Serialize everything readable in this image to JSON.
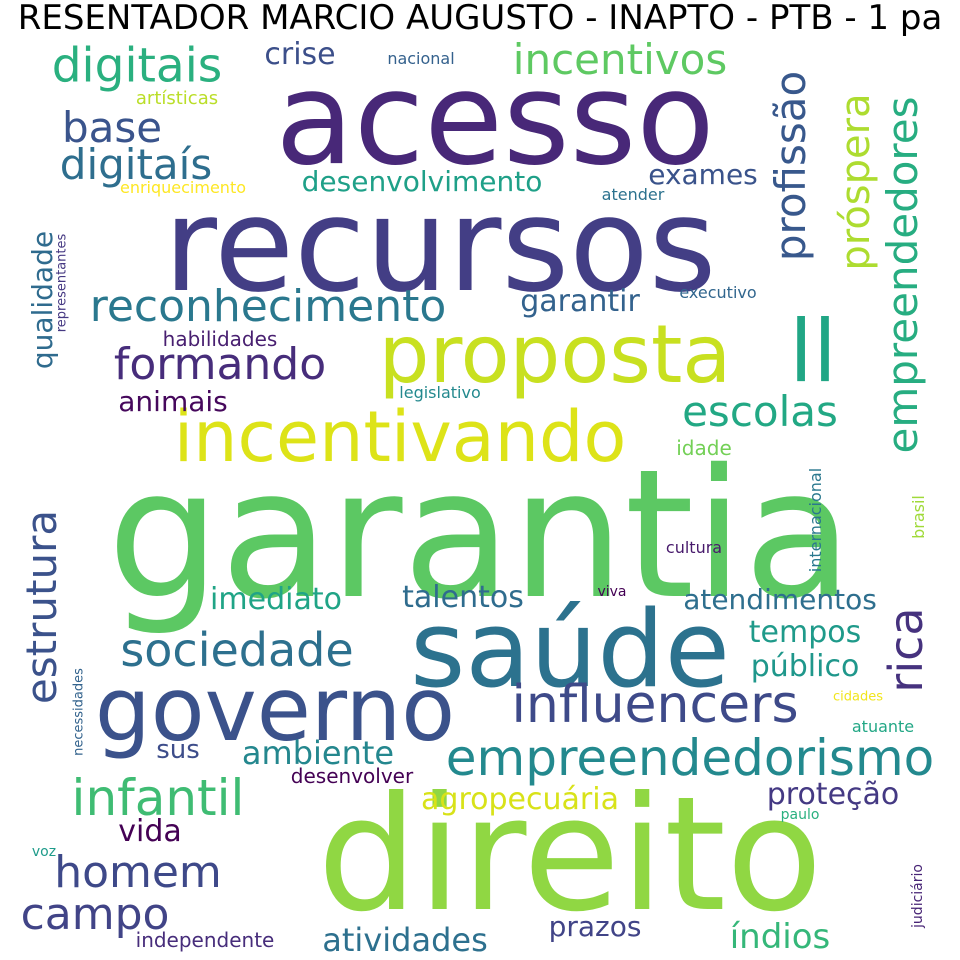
{
  "title": "RESENTADOR MARCIO AUGUSTO - INAPTO - PTB - 1 pa",
  "words": [
    {
      "text": "garantia",
      "color": "#5cc863"
    },
    {
      "text": "direito",
      "color": "#90d743"
    },
    {
      "text": "recursos",
      "color": "#433e85"
    },
    {
      "text": "acesso",
      "color": "#482878"
    },
    {
      "text": "saúde",
      "color": "#2c728e"
    },
    {
      "text": "governo",
      "color": "#3b528b"
    },
    {
      "text": "proposta",
      "color": "#c8e020"
    },
    {
      "text": "incentivando",
      "color": "#dde318"
    },
    {
      "text": "ll",
      "color": "#21a685"
    },
    {
      "text": "empreendedorismo",
      "color": "#23898e"
    },
    {
      "text": "influencers",
      "color": "#3e4a89"
    },
    {
      "text": "reconhecimento",
      "color": "#2a788e"
    },
    {
      "text": "infantil",
      "color": "#3fbc73"
    },
    {
      "text": "digitais",
      "color": "#2ab07f"
    },
    {
      "text": "incentivos",
      "color": "#5ec962"
    },
    {
      "text": "sociedade",
      "color": "#2d708e"
    },
    {
      "text": "formando",
      "color": "#472d7b"
    },
    {
      "text": "escolas",
      "color": "#22a884"
    },
    {
      "text": "campo",
      "color": "#414487"
    },
    {
      "text": "homem",
      "color": "#3e4989"
    },
    {
      "text": "digitaís",
      "color": "#2e6e8e"
    },
    {
      "text": "base",
      "color": "#3a548c"
    },
    {
      "text": "estrutura",
      "color": "#3b528b"
    },
    {
      "text": "empreendedores",
      "color": "#27ad81"
    },
    {
      "text": "rica",
      "color": "#46327e"
    },
    {
      "text": "profissão",
      "color": "#38588c"
    },
    {
      "text": "próspera",
      "color": "#addc30"
    },
    {
      "text": "ambiente",
      "color": "#24878e"
    },
    {
      "text": "atividades",
      "color": "#2d708e"
    },
    {
      "text": "índios",
      "color": "#35b779"
    },
    {
      "text": "agropecuária",
      "color": "#d8e219"
    },
    {
      "text": "imediato",
      "color": "#20a486"
    },
    {
      "text": "talentos",
      "color": "#2f6c8e"
    },
    {
      "text": "atendimentos",
      "color": "#2e6f8e"
    },
    {
      "text": "tempos",
      "color": "#1f9a8a"
    },
    {
      "text": "público",
      "color": "#1f978b"
    },
    {
      "text": "proteção",
      "color": "#443983"
    },
    {
      "text": "vida",
      "color": "#440154"
    },
    {
      "text": "desenvolvimento",
      "color": "#1fa088"
    },
    {
      "text": "garantir",
      "color": "#33628d"
    },
    {
      "text": "exames",
      "color": "#3a538b"
    },
    {
      "text": "crise",
      "color": "#3c4f8a"
    },
    {
      "text": "qualidade",
      "color": "#2f6b8e"
    },
    {
      "text": "animais",
      "color": "#46085c"
    },
    {
      "text": "habilidades",
      "color": "#481f70"
    },
    {
      "text": "prazos",
      "color": "#414487"
    },
    {
      "text": "sus",
      "color": "#3d4d8a"
    },
    {
      "text": "desenvolver",
      "color": "#440154"
    },
    {
      "text": "independente",
      "color": "#472d7b"
    },
    {
      "text": "idade",
      "color": "#73d056"
    },
    {
      "text": "cultura",
      "color": "#481a6c"
    },
    {
      "text": "artísticas",
      "color": "#bade28"
    },
    {
      "text": "enriquecimento",
      "color": "#fde725"
    },
    {
      "text": "nacional",
      "color": "#34618d"
    },
    {
      "text": "atender",
      "color": "#2c728e"
    },
    {
      "text": "executivo",
      "color": "#31668e"
    },
    {
      "text": "legislativo",
      "color": "#23898e"
    },
    {
      "text": "representantes",
      "color": "#453882"
    },
    {
      "text": "internacional",
      "color": "#2a788e"
    },
    {
      "text": "brasil",
      "color": "#a0da39"
    },
    {
      "text": "viva",
      "color": "#440154"
    },
    {
      "text": "necessidades",
      "color": "#33638d"
    },
    {
      "text": "cidades",
      "color": "#f1e51d"
    },
    {
      "text": "atuante",
      "color": "#22a785"
    },
    {
      "text": "paulo",
      "color": "#2ab07f"
    },
    {
      "text": "voz",
      "color": "#1e9b8a"
    },
    {
      "text": "judiciário",
      "color": "#482576"
    }
  ]
}
